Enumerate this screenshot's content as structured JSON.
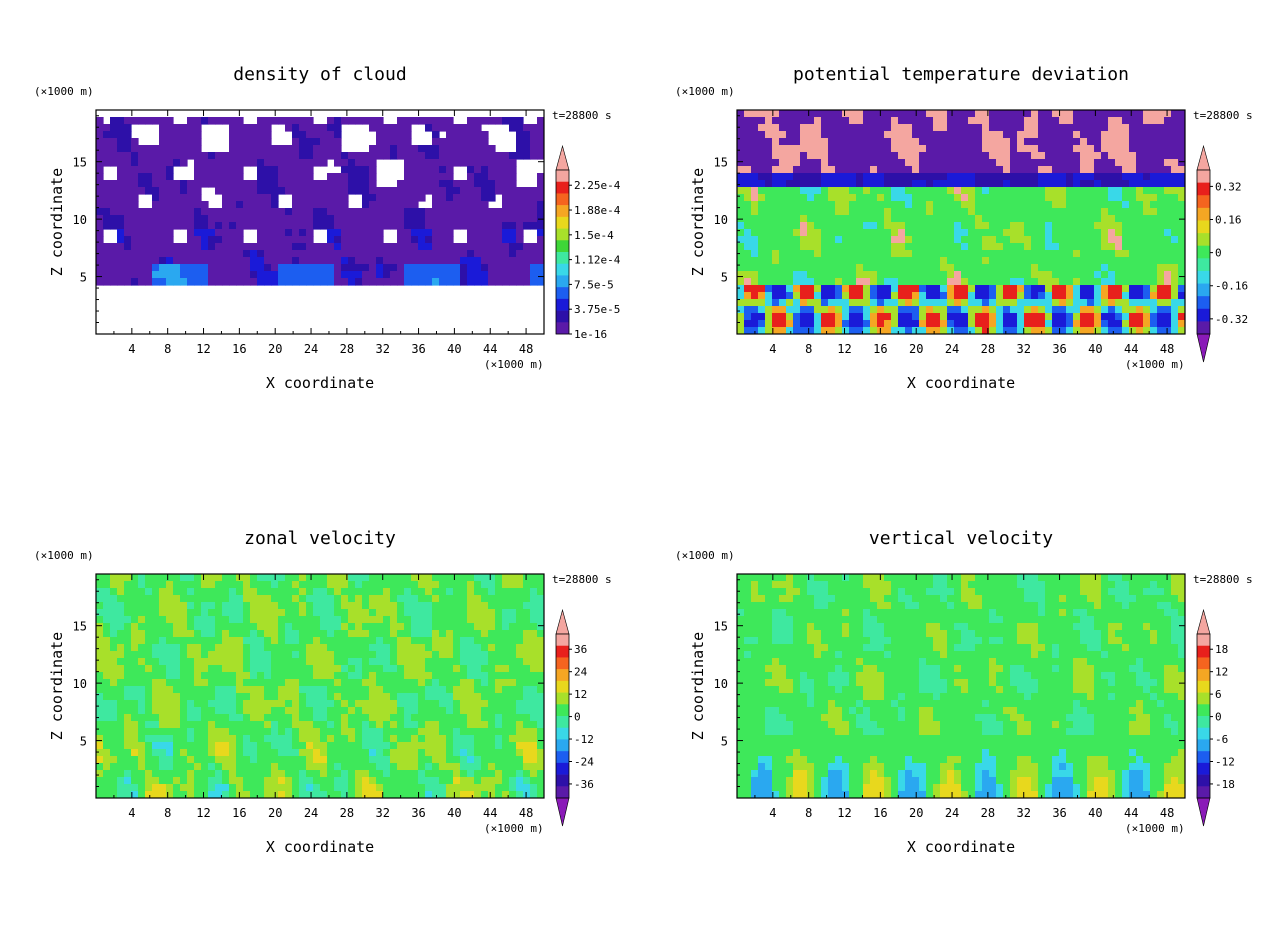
{
  "figure": {
    "x_unit": "(×1000 m)",
    "y_unit": "(×1000 m)",
    "time_label": "t=28800 s"
  },
  "chart_data": [
    {
      "type": "heatmap",
      "title": "density of cloud",
      "xlabel": "X coordinate",
      "ylabel": "Z coordinate",
      "xlim": [
        0,
        50
      ],
      "ylim": [
        0,
        19.5
      ],
      "x_ticks": [
        "4",
        "8",
        "12",
        "16",
        "20",
        "24",
        "28",
        "32",
        "36",
        "40",
        "44",
        "48"
      ],
      "y_ticks": [
        "5",
        "10",
        "15"
      ],
      "colorbar_labels": [
        "2.25e-4",
        "1.88e-4",
        "1.5e-4",
        "1.12e-4",
        "7.5e-5",
        "3.75e-5",
        "1e-16"
      ],
      "colorbar_colors": [
        "#f4a6a0",
        "#e8201c",
        "#f5641f",
        "#f5a623",
        "#e8d81d",
        "#a8e02a",
        "#3ed638",
        "#3ee8a0",
        "#39d8e8",
        "#2aa8f0",
        "#1c5ef0",
        "#1a1ad8",
        "#2d10a8",
        "#5a1aa8"
      ],
      "colorbar_arrows": [
        "top"
      ],
      "field": "cloud",
      "features": "cloud layer between Z≈4 and Z≈18 (×1000 m); denser blue cores near Z≈5; clear air elsewhere"
    },
    {
      "type": "heatmap",
      "title": "potential temperature deviation",
      "xlabel": "X coordinate",
      "ylabel": "Z coordinate",
      "xlim": [
        0,
        50
      ],
      "ylim": [
        0,
        19.5
      ],
      "x_ticks": [
        "4",
        "8",
        "12",
        "16",
        "20",
        "24",
        "28",
        "32",
        "36",
        "40",
        "44",
        "48"
      ],
      "y_ticks": [
        "5",
        "10",
        "15"
      ],
      "colorbar_labels": [
        "0.32",
        "0.16",
        "0",
        "-0.16",
        "-0.32"
      ],
      "colorbar_colors": [
        "#f4a6a0",
        "#e8201c",
        "#f5641f",
        "#f5a623",
        "#e8d81d",
        "#a8e02a",
        "#3ee85a",
        "#3ee8a0",
        "#39d8e8",
        "#2aa8f0",
        "#1c5ef0",
        "#1a1ad8",
        "#5a1aa8"
      ],
      "colorbar_arrows": [
        "top",
        "bottom"
      ],
      "field": "theta",
      "features": "purple/pink cap above Z≈14; green mid layer; warm convective cells below Z≈4"
    },
    {
      "type": "heatmap",
      "title": "zonal velocity",
      "xlabel": "X coordinate",
      "ylabel": "Z coordinate",
      "xlim": [
        0,
        50
      ],
      "ylim": [
        0,
        19.5
      ],
      "x_ticks": [
        "4",
        "8",
        "12",
        "16",
        "20",
        "24",
        "28",
        "32",
        "36",
        "40",
        "44",
        "48"
      ],
      "y_ticks": [
        "5",
        "10",
        "15"
      ],
      "colorbar_labels": [
        "36",
        "24",
        "12",
        "0",
        "-12",
        "-24",
        "-36"
      ],
      "colorbar_colors": [
        "#f4a6a0",
        "#e8201c",
        "#f5641f",
        "#f5a623",
        "#e8d81d",
        "#a8e02a",
        "#3ee85a",
        "#3ee8a0",
        "#39d8e8",
        "#2aa8f0",
        "#1c5ef0",
        "#1a1ad8",
        "#2d10a8",
        "#5a1aa8"
      ],
      "colorbar_arrows": [
        "top",
        "bottom"
      ],
      "field": "u",
      "features": "mostly green (near 0) with yellow-green blobs near the surface"
    },
    {
      "type": "heatmap",
      "title": "vertical velocity",
      "xlabel": "X coordinate",
      "ylabel": "Z coordinate",
      "xlim": [
        0,
        50
      ],
      "ylim": [
        0,
        19.5
      ],
      "x_ticks": [
        "4",
        "8",
        "12",
        "16",
        "20",
        "24",
        "28",
        "32",
        "36",
        "40",
        "44",
        "48"
      ],
      "y_ticks": [
        "5",
        "10",
        "15"
      ],
      "colorbar_labels": [
        "18",
        "12",
        "6",
        "0",
        "-6",
        "-12",
        "-18"
      ],
      "colorbar_colors": [
        "#f4a6a0",
        "#e8201c",
        "#f5641f",
        "#f5a623",
        "#e8d81d",
        "#a8e02a",
        "#3ee85a",
        "#3ee8a0",
        "#39d8e8",
        "#2aa8f0",
        "#1c5ef0",
        "#1a1ad8",
        "#2d10a8",
        "#5a1aa8"
      ],
      "colorbar_arrows": [
        "top",
        "bottom"
      ],
      "field": "w",
      "features": "green field with yellow updraft plumes and blue downdrafts below Z≈5"
    }
  ]
}
